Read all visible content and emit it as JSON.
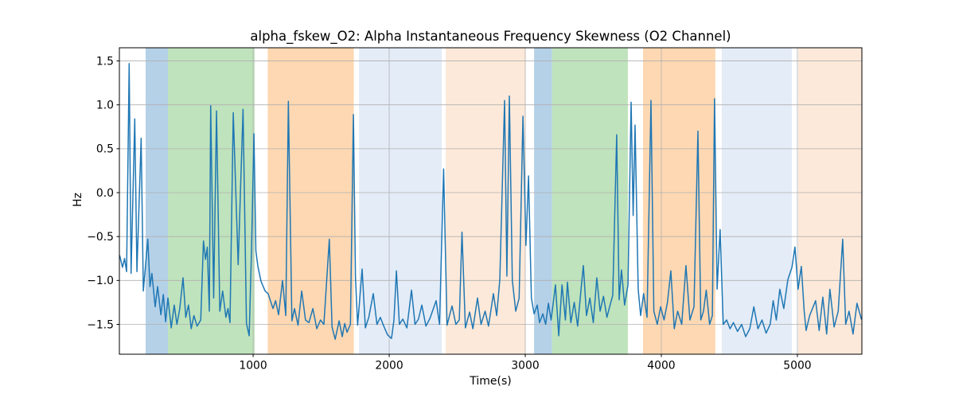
{
  "chart_data": {
    "type": "line",
    "title": "alpha_fskew_O2: Alpha Instantaneous Frequency Skewness (O2 Channel)",
    "xlabel": "Time(s)",
    "ylabel": "Hz",
    "xlim": [
      17,
      5474
    ],
    "ylim": [
      -1.84,
      1.65
    ],
    "grid": true,
    "legend": "none",
    "xticks": [
      {
        "value": 1000,
        "label": "1000"
      },
      {
        "value": 2000,
        "label": "2000"
      },
      {
        "value": 3000,
        "label": "3000"
      },
      {
        "value": 4000,
        "label": "4000"
      },
      {
        "value": 5000,
        "label": "5000"
      }
    ],
    "yticks": [
      {
        "value": 1.5,
        "label": "1.5"
      },
      {
        "value": 1.0,
        "label": "1.0"
      },
      {
        "value": 0.5,
        "label": "0.5"
      },
      {
        "value": 0.0,
        "label": "0.0"
      },
      {
        "value": -0.5,
        "label": "−0.5"
      },
      {
        "value": -1.0,
        "label": "−1.0"
      },
      {
        "value": -1.5,
        "label": "−1.5"
      }
    ],
    "colors": {
      "line": "#1f77b4",
      "grid": "#b0b0b0",
      "spine": "#000000",
      "background": "#ffffff",
      "band_blue": "#b5d1e8",
      "band_green": "#bfe3bc",
      "band_orange": "#fed8b2",
      "band_blue_light": "#e4ecf7",
      "band_orange_light": "#fde9d9"
    },
    "stage_bands": [
      {
        "start": 210,
        "end": 374,
        "color": "#b5d1e8"
      },
      {
        "start": 374,
        "end": 1011,
        "color": "#bfe3bc"
      },
      {
        "start": 1107,
        "end": 1740,
        "color": "#fed8b2"
      },
      {
        "start": 1778,
        "end": 2386,
        "color": "#e4ecf7"
      },
      {
        "start": 2415,
        "end": 3000,
        "color": "#fde9d9"
      },
      {
        "start": 3065,
        "end": 3197,
        "color": "#b5d1e8"
      },
      {
        "start": 3197,
        "end": 3754,
        "color": "#bfe3bc"
      },
      {
        "start": 3865,
        "end": 4397,
        "color": "#fed8b2"
      },
      {
        "start": 4444,
        "end": 4959,
        "color": "#e4ecf7"
      },
      {
        "start": 5006,
        "end": 5474,
        "color": "#fde9d9"
      }
    ],
    "series": [
      {
        "name": "alpha_fskew_O2",
        "color": "#1f77b4",
        "points": [
          [
            20,
            -0.72
          ],
          [
            40,
            -0.85
          ],
          [
            55,
            -0.75
          ],
          [
            70,
            -0.9
          ],
          [
            89,
            1.47
          ],
          [
            103,
            -0.92
          ],
          [
            130,
            0.84
          ],
          [
            146,
            -0.9
          ],
          [
            177,
            0.62
          ],
          [
            193,
            -1.12
          ],
          [
            226,
            -0.53
          ],
          [
            242,
            -1.07
          ],
          [
            256,
            -0.92
          ],
          [
            280,
            -1.3
          ],
          [
            298,
            -1.07
          ],
          [
            322,
            -1.39
          ],
          [
            340,
            -1.16
          ],
          [
            357,
            -1.47
          ],
          [
            374,
            -1.2
          ],
          [
            398,
            -1.54
          ],
          [
            420,
            -1.28
          ],
          [
            440,
            -1.5
          ],
          [
            460,
            -1.33
          ],
          [
            485,
            -0.97
          ],
          [
            505,
            -1.42
          ],
          [
            525,
            -1.28
          ],
          [
            545,
            -1.55
          ],
          [
            565,
            -1.4
          ],
          [
            588,
            -1.52
          ],
          [
            615,
            -1.45
          ],
          [
            635,
            -0.55
          ],
          [
            650,
            -0.76
          ],
          [
            663,
            -0.62
          ],
          [
            678,
            -1.35
          ],
          [
            688,
            0.99
          ],
          [
            710,
            -1.2
          ],
          [
            731,
            0.93
          ],
          [
            755,
            -1.35
          ],
          [
            776,
            -1.12
          ],
          [
            800,
            -1.42
          ],
          [
            815,
            -1.32
          ],
          [
            830,
            -1.48
          ],
          [
            854,
            0.91
          ],
          [
            890,
            -0.82
          ],
          [
            926,
            0.95
          ],
          [
            951,
            -1.49
          ],
          [
            971,
            -1.63
          ],
          [
            988,
            -0.66
          ],
          [
            1006,
            0.67
          ],
          [
            1020,
            -0.66
          ],
          [
            1035,
            -0.84
          ],
          [
            1058,
            -1.01
          ],
          [
            1088,
            -1.12
          ],
          [
            1110,
            -1.15
          ],
          [
            1146,
            -1.32
          ],
          [
            1165,
            -1.23
          ],
          [
            1187,
            -1.39
          ],
          [
            1216,
            -1.0
          ],
          [
            1240,
            -1.4
          ],
          [
            1259,
            1.04
          ],
          [
            1285,
            -1.46
          ],
          [
            1304,
            -1.32
          ],
          [
            1330,
            -1.51
          ],
          [
            1357,
            -1.12
          ],
          [
            1385,
            -1.45
          ],
          [
            1410,
            -1.48
          ],
          [
            1439,
            -1.32
          ],
          [
            1468,
            -1.55
          ],
          [
            1495,
            -1.45
          ],
          [
            1520,
            -1.5
          ],
          [
            1560,
            -0.53
          ],
          [
            1580,
            -1.53
          ],
          [
            1603,
            -1.67
          ],
          [
            1632,
            -1.46
          ],
          [
            1655,
            -1.64
          ],
          [
            1673,
            -1.49
          ],
          [
            1690,
            -1.59
          ],
          [
            1715,
            -1.5
          ],
          [
            1737,
            0.89
          ],
          [
            1752,
            -0.96
          ],
          [
            1768,
            -1.51
          ],
          [
            1801,
            -0.87
          ],
          [
            1825,
            -1.54
          ],
          [
            1850,
            -1.42
          ],
          [
            1883,
            -1.15
          ],
          [
            1910,
            -1.5
          ],
          [
            1935,
            -1.42
          ],
          [
            1960,
            -1.52
          ],
          [
            1988,
            -1.62
          ],
          [
            2017,
            -1.66
          ],
          [
            2035,
            -1.45
          ],
          [
            2053,
            -0.89
          ],
          [
            2075,
            -1.5
          ],
          [
            2100,
            -1.44
          ],
          [
            2130,
            -1.54
          ],
          [
            2164,
            -1.11
          ],
          [
            2190,
            -1.5
          ],
          [
            2215,
            -1.44
          ],
          [
            2240,
            -1.28
          ],
          [
            2270,
            -1.52
          ],
          [
            2300,
            -1.43
          ],
          [
            2345,
            -1.23
          ],
          [
            2370,
            -1.5
          ],
          [
            2400,
            0.27
          ],
          [
            2425,
            -1.51
          ],
          [
            2462,
            -1.29
          ],
          [
            2490,
            -1.5
          ],
          [
            2515,
            -1.45
          ],
          [
            2535,
            -0.45
          ],
          [
            2560,
            -1.54
          ],
          [
            2591,
            -1.36
          ],
          [
            2615,
            -1.55
          ],
          [
            2649,
            -1.2
          ],
          [
            2675,
            -1.5
          ],
          [
            2705,
            -1.35
          ],
          [
            2730,
            -1.52
          ],
          [
            2766,
            -1.15
          ],
          [
            2790,
            -1.4
          ],
          [
            2813,
            -0.99
          ],
          [
            2848,
            1.05
          ],
          [
            2865,
            -0.95
          ],
          [
            2883,
            1.1
          ],
          [
            2905,
            -1.0
          ],
          [
            2930,
            -1.35
          ],
          [
            2955,
            -1.2
          ],
          [
            2983,
            0.87
          ],
          [
            3005,
            -0.6
          ],
          [
            3024,
            0.19
          ],
          [
            3045,
            -1.2
          ],
          [
            3065,
            -1.38
          ],
          [
            3088,
            -1.28
          ],
          [
            3105,
            -1.48
          ],
          [
            3129,
            -1.38
          ],
          [
            3150,
            -1.5
          ],
          [
            3170,
            -1.26
          ],
          [
            3190,
            -1.45
          ],
          [
            3222,
            -1.05
          ],
          [
            3246,
            -1.63
          ],
          [
            3270,
            -1.05
          ],
          [
            3295,
            -1.45
          ],
          [
            3310,
            -1.02
          ],
          [
            3335,
            -1.48
          ],
          [
            3360,
            -1.25
          ],
          [
            3385,
            -1.52
          ],
          [
            3410,
            -1.1
          ],
          [
            3427,
            -0.83
          ],
          [
            3450,
            -1.4
          ],
          [
            3475,
            -1.2
          ],
          [
            3500,
            -1.48
          ],
          [
            3526,
            -0.97
          ],
          [
            3550,
            -1.35
          ],
          [
            3575,
            -1.18
          ],
          [
            3600,
            -1.42
          ],
          [
            3620,
            -1.3
          ],
          [
            3643,
            -1.17
          ],
          [
            3672,
            0.66
          ],
          [
            3690,
            -1.22
          ],
          [
            3707,
            -0.88
          ],
          [
            3730,
            -1.28
          ],
          [
            3755,
            -1.05
          ],
          [
            3778,
            1.03
          ],
          [
            3793,
            -0.26
          ],
          [
            3807,
            0.77
          ],
          [
            3830,
            -1.1
          ],
          [
            3848,
            -1.4
          ],
          [
            3870,
            -1.15
          ],
          [
            3895,
            -1.42
          ],
          [
            3924,
            1.05
          ],
          [
            3945,
            -1.35
          ],
          [
            3970,
            -1.5
          ],
          [
            3995,
            -1.3
          ],
          [
            4020,
            -1.45
          ],
          [
            4045,
            -1.25
          ],
          [
            4070,
            -0.89
          ],
          [
            4095,
            -1.55
          ],
          [
            4120,
            -1.35
          ],
          [
            4150,
            -1.5
          ],
          [
            4181,
            -0.83
          ],
          [
            4210,
            -1.45
          ],
          [
            4240,
            -1.3
          ],
          [
            4269,
            0.7
          ],
          [
            4290,
            -1.45
          ],
          [
            4310,
            -1.35
          ],
          [
            4330,
            -1.11
          ],
          [
            4355,
            -1.5
          ],
          [
            4375,
            -1.4
          ],
          [
            4391,
            1.07
          ],
          [
            4410,
            -1.1
          ],
          [
            4432,
            -0.42
          ],
          [
            4455,
            -1.5
          ],
          [
            4480,
            -1.45
          ],
          [
            4505,
            -1.55
          ],
          [
            4530,
            -1.48
          ],
          [
            4560,
            -1.58
          ],
          [
            4590,
            -1.5
          ],
          [
            4620,
            -1.64
          ],
          [
            4650,
            -1.55
          ],
          [
            4680,
            -1.3
          ],
          [
            4710,
            -1.55
          ],
          [
            4740,
            -1.45
          ],
          [
            4770,
            -1.6
          ],
          [
            4800,
            -1.5
          ],
          [
            4822,
            -1.23
          ],
          [
            4845,
            -1.45
          ],
          [
            4871,
            -1.1
          ],
          [
            4900,
            -1.32
          ],
          [
            4930,
            -0.99
          ],
          [
            4960,
            -0.85
          ],
          [
            4982,
            -0.62
          ],
          [
            5005,
            -1.1
          ],
          [
            5029,
            -0.84
          ],
          [
            5050,
            -1.35
          ],
          [
            5064,
            -1.57
          ],
          [
            5090,
            -1.4
          ],
          [
            5134,
            -1.23
          ],
          [
            5160,
            -1.57
          ],
          [
            5187,
            -1.19
          ],
          [
            5215,
            -1.61
          ],
          [
            5239,
            -1.1
          ],
          [
            5270,
            -1.53
          ],
          [
            5300,
            -1.35
          ],
          [
            5333,
            -0.53
          ],
          [
            5355,
            -1.5
          ],
          [
            5380,
            -1.35
          ],
          [
            5409,
            -1.61
          ],
          [
            5438,
            -1.26
          ],
          [
            5470,
            -1.44
          ]
        ]
      }
    ]
  }
}
